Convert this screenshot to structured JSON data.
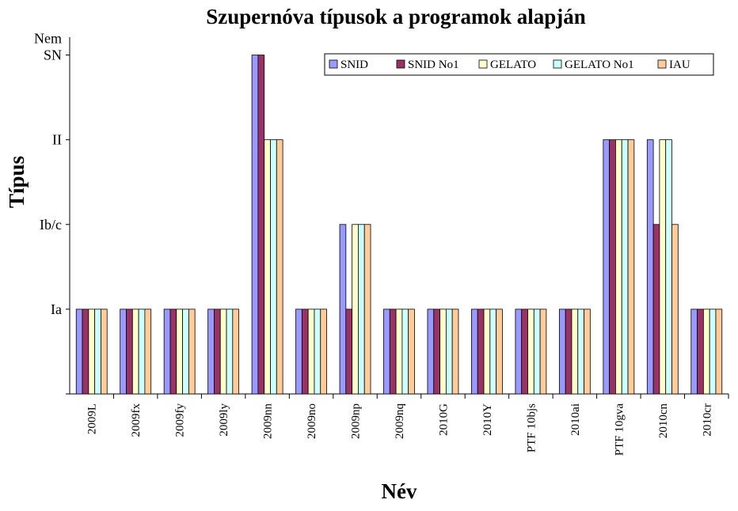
{
  "chart_data": {
    "type": "bar",
    "title": "Szupernóva típusok a programok alapján",
    "xlabel": "Név",
    "ylabel": "Típus",
    "categories": [
      "2009L",
      "2009fx",
      "2009fy",
      "2009ly",
      "2009nn",
      "2009no",
      "2009np",
      "2009nq",
      "2010G",
      "2010Y",
      "PTF 10bjs",
      "2010ai",
      "PTF 10gva",
      "2010cn",
      "2010cr"
    ],
    "y_categories": [
      {
        "value": 0,
        "label_lines": []
      },
      {
        "value": 1,
        "label_lines": [
          "Ia"
        ]
      },
      {
        "value": 2,
        "label_lines": [
          "Ib/c"
        ]
      },
      {
        "value": 3,
        "label_lines": [
          "II"
        ]
      },
      {
        "value": 4,
        "label_lines": [
          "Nem",
          "SN"
        ]
      }
    ],
    "ylim": [
      0,
      4
    ],
    "series": [
      {
        "name": "SNID",
        "color": "#9999ff",
        "values": [
          1,
          1,
          1,
          1,
          4,
          1,
          2,
          1,
          1,
          1,
          1,
          1,
          3,
          3,
          1
        ]
      },
      {
        "name": "SNID No1",
        "color": "#993366",
        "values": [
          1,
          1,
          1,
          1,
          4,
          1,
          1,
          1,
          1,
          1,
          1,
          1,
          3,
          2,
          1
        ]
      },
      {
        "name": "GELATO",
        "color": "#ffffcc",
        "values": [
          1,
          1,
          1,
          1,
          3,
          1,
          2,
          1,
          1,
          1,
          1,
          1,
          3,
          3,
          1
        ]
      },
      {
        "name": "GELATO No1",
        "color": "#ccffff",
        "values": [
          1,
          1,
          1,
          1,
          3,
          1,
          2,
          1,
          1,
          1,
          1,
          1,
          3,
          3,
          1
        ]
      },
      {
        "name": "IAU",
        "color": "#ffcc99",
        "values": [
          1,
          1,
          1,
          1,
          3,
          1,
          2,
          1,
          1,
          1,
          1,
          1,
          3,
          2,
          1
        ]
      }
    ],
    "legend_position": "top-right",
    "grid": false
  }
}
